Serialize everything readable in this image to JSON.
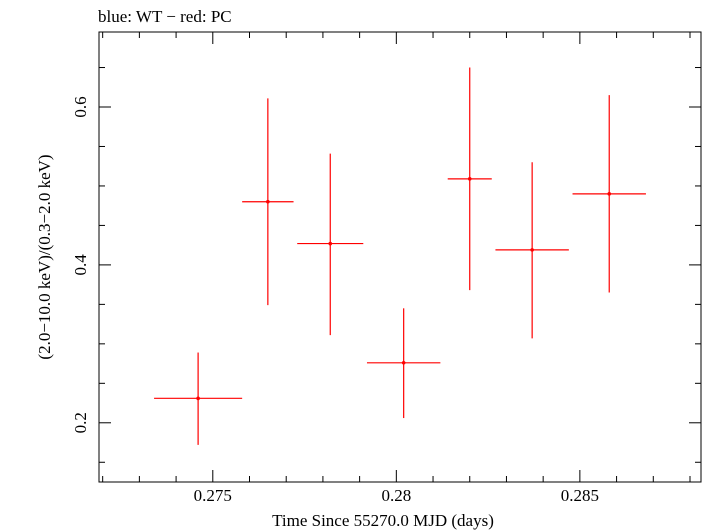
{
  "chart_data": {
    "type": "scatter",
    "title": "blue: WT − red: PC",
    "xlabel": "Time Since 55270.0 MJD (days)",
    "ylabel": "(2.0−10.0 keV)/(0.3−2.0 keV)",
    "xlim": [
      0.2719,
      0.2883
    ],
    "ylim": [
      0.125,
      0.695
    ],
    "xticks": [
      0.275,
      0.28,
      0.285
    ],
    "xtick_labels": [
      "0.275",
      "0.28",
      "0.285"
    ],
    "yticks": [
      0.2,
      0.4,
      0.6
    ],
    "ytick_labels": [
      "0.2",
      "0.4",
      "0.6"
    ],
    "series": [
      {
        "name": "PC",
        "color": "#ff0000",
        "points": [
          {
            "x": 0.2746,
            "y": 0.231,
            "xerr": 0.0012,
            "ylo": 0.172,
            "yhi": 0.289
          },
          {
            "x": 0.2765,
            "y": 0.48,
            "xerr": 0.0007,
            "ylo": 0.349,
            "yhi": 0.611
          },
          {
            "x": 0.2782,
            "y": 0.427,
            "xerr": 0.0009,
            "ylo": 0.311,
            "yhi": 0.541
          },
          {
            "x": 0.2802,
            "y": 0.276,
            "xerr": 0.001,
            "ylo": 0.206,
            "yhi": 0.345
          },
          {
            "x": 0.282,
            "y": 0.509,
            "xerr": 0.0006,
            "ylo": 0.368,
            "yhi": 0.65
          },
          {
            "x": 0.2837,
            "y": 0.419,
            "xerr": 0.001,
            "ylo": 0.307,
            "yhi": 0.53
          },
          {
            "x": 0.2858,
            "y": 0.49,
            "xerr": 0.001,
            "ylo": 0.365,
            "yhi": 0.615
          }
        ]
      }
    ]
  }
}
